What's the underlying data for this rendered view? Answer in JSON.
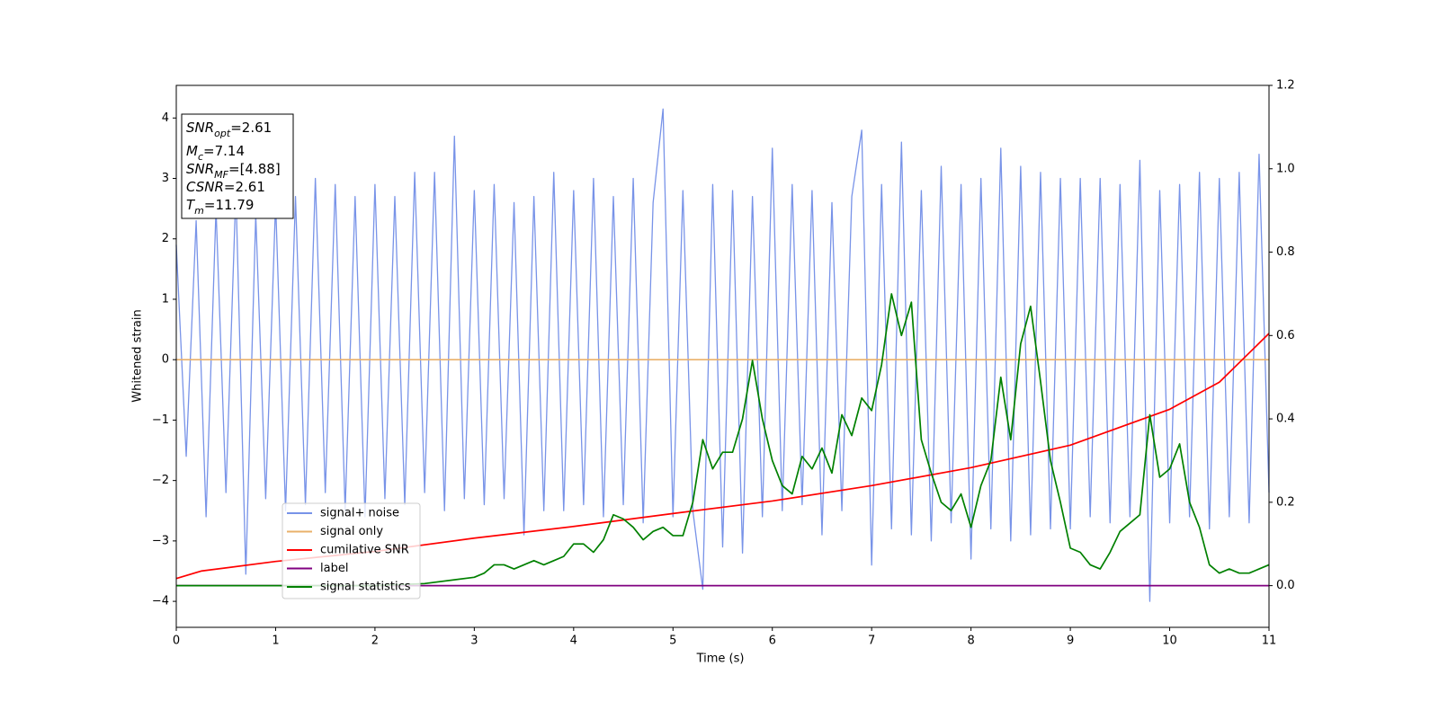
{
  "chart_data": {
    "type": "line",
    "xlabel": "Time (s)",
    "ylabel": "Whitened strain",
    "xlim": [
      0,
      11
    ],
    "ylim": [
      -4.43,
      4.54
    ],
    "y2lim": [
      -0.1,
      1.2
    ],
    "xticks": [
      0,
      1,
      2,
      3,
      4,
      5,
      6,
      7,
      8,
      9,
      10,
      11
    ],
    "yticks": [
      {
        "value": -4,
        "label": "−4"
      },
      {
        "value": -3,
        "label": "−3"
      },
      {
        "value": -2,
        "label": "−2"
      },
      {
        "value": -1,
        "label": "−1"
      },
      0,
      1,
      2,
      3,
      4
    ],
    "y2ticks": [
      {
        "value": 0,
        "label": "0.0"
      },
      {
        "value": 0.2,
        "label": "0.2"
      },
      {
        "value": 0.4,
        "label": "0.4"
      },
      {
        "value": 0.6,
        "label": "0.6"
      },
      {
        "value": 0.8,
        "label": "0.8"
      },
      {
        "value": 1,
        "label": "1.0"
      },
      {
        "value": 1.2,
        "label": "1.2"
      }
    ],
    "annotation": [
      {
        "base": "SNR",
        "sub": "opt",
        "text": "=2.61"
      },
      {
        "base": "M",
        "sub": "c",
        "text": "=7.14"
      },
      {
        "base": "SNR",
        "sub": "MF",
        "text": "=[4.88]"
      },
      {
        "base": "CSNR",
        "text": "=2.61"
      },
      {
        "base": "T",
        "sub": "m",
        "text": "=11.79"
      }
    ],
    "series": [
      {
        "name": "signal+ noise",
        "color": "#7893e8",
        "x": [
          0,
          0.1,
          0.2,
          0.3,
          0.4,
          0.5,
          0.6,
          0.7,
          0.8,
          0.9,
          1,
          1.1,
          1.2,
          1.3,
          1.4,
          1.5,
          1.6,
          1.7,
          1.8,
          1.9,
          2,
          2.1,
          2.2,
          2.3,
          2.4,
          2.5,
          2.6,
          2.7,
          2.8,
          2.9,
          3,
          3.1,
          3.2,
          3.3,
          3.4,
          3.5,
          3.6,
          3.7,
          3.8,
          3.9,
          4,
          4.1,
          4.2,
          4.3,
          4.4,
          4.5,
          4.6,
          4.7,
          4.8,
          4.9,
          5,
          5.1,
          5.2,
          5.3,
          5.4,
          5.5,
          5.6,
          5.7,
          5.8,
          5.9,
          6,
          6.1,
          6.2,
          6.3,
          6.4,
          6.5,
          6.6,
          6.7,
          6.8,
          6.9,
          7,
          7.1,
          7.2,
          7.3,
          7.4,
          7.5,
          7.6,
          7.7,
          7.8,
          7.9,
          8,
          8.1,
          8.2,
          8.3,
          8.4,
          8.5,
          8.6,
          8.7,
          8.8,
          8.9,
          9,
          9.1,
          9.2,
          9.3,
          9.4,
          9.5,
          9.6,
          9.7,
          9.8,
          9.9,
          10,
          10.1,
          10.2,
          10.3,
          10.4,
          10.5,
          10.6,
          10.7,
          10.8,
          10.9,
          11
        ],
        "values": [
          1.9,
          -1.6,
          2.3,
          -2.6,
          2.5,
          -2.2,
          2.8,
          -3.55,
          2.4,
          -2.3,
          2.6,
          -2.5,
          2.7,
          -2.4,
          3.0,
          -2.2,
          2.9,
          -2.5,
          2.7,
          -2.6,
          2.9,
          -2.3,
          2.7,
          -2.4,
          3.1,
          -2.2,
          3.1,
          -2.5,
          3.7,
          -2.3,
          2.8,
          -2.4,
          2.9,
          -2.3,
          2.6,
          -2.9,
          2.7,
          -2.5,
          3.1,
          -2.5,
          2.8,
          -2.4,
          3.0,
          -2.6,
          2.7,
          -2.4,
          3.0,
          -2.7,
          2.6,
          4.15,
          -2.6,
          2.8,
          -2.5,
          -3.8,
          2.9,
          -3.1,
          2.8,
          -3.2,
          2.7,
          -2.6,
          3.5,
          -2.5,
          2.9,
          -2.4,
          2.8,
          -2.9,
          2.6,
          -2.5,
          2.7,
          3.8,
          -3.4,
          2.9,
          -2.8,
          3.6,
          -2.9,
          2.8,
          -3.0,
          3.2,
          -2.7,
          2.9,
          -3.3,
          3.0,
          -2.8,
          3.5,
          -3.0,
          3.2,
          -2.9,
          3.1,
          -2.8,
          3.0,
          -2.8,
          3.0,
          -2.6,
          3.0,
          -2.7,
          2.9,
          -2.6,
          3.3,
          -4.0,
          2.8,
          -2.7,
          2.9,
          -2.6,
          3.1,
          -2.8,
          3.0,
          -2.6,
          3.1,
          -2.7,
          3.4,
          -2.2
        ]
      },
      {
        "name": "signal only",
        "color": "#e9b06a",
        "x": [
          0,
          11
        ],
        "values": [
          0,
          0
        ]
      },
      {
        "name": "cumilative SNR",
        "color": "#ff0000",
        "axis": "y2",
        "x": [
          0,
          0.25,
          1,
          2,
          3,
          4,
          5,
          6,
          7,
          8,
          9,
          10,
          10.5,
          11
        ],
        "values": [
          0.017,
          0.035,
          0.058,
          0.082,
          0.114,
          0.142,
          0.173,
          0.203,
          0.24,
          0.283,
          0.337,
          0.423,
          0.488,
          0.605
        ]
      },
      {
        "name": "label",
        "color": "#800080",
        "axis": "y2",
        "x": [
          0,
          11
        ],
        "values": [
          0,
          0
        ]
      },
      {
        "name": "signal statistics",
        "color": "#008000",
        "axis": "y2",
        "x": [
          0,
          0.5,
          1,
          1.5,
          2,
          2.5,
          3,
          3.1,
          3.2,
          3.3,
          3.4,
          3.5,
          3.6,
          3.7,
          3.8,
          3.9,
          4,
          4.1,
          4.2,
          4.3,
          4.4,
          4.5,
          4.6,
          4.7,
          4.8,
          4.9,
          5,
          5.1,
          5.2,
          5.3,
          5.4,
          5.5,
          5.6,
          5.7,
          5.8,
          5.9,
          6,
          6.1,
          6.2,
          6.3,
          6.4,
          6.5,
          6.6,
          6.7,
          6.8,
          6.9,
          7,
          7.1,
          7.2,
          7.3,
          7.4,
          7.5,
          7.6,
          7.7,
          7.8,
          7.9,
          8,
          8.1,
          8.2,
          8.3,
          8.4,
          8.5,
          8.6,
          8.7,
          8.8,
          8.9,
          9,
          9.1,
          9.2,
          9.3,
          9.4,
          9.5,
          9.6,
          9.7,
          9.8,
          9.9,
          10,
          10.1,
          10.2,
          10.3,
          10.4,
          10.5,
          10.6,
          10.7,
          10.8,
          10.9,
          11
        ],
        "values": [
          0,
          0,
          0,
          0,
          0,
          0.005,
          0.02,
          0.03,
          0.05,
          0.05,
          0.04,
          0.05,
          0.06,
          0.05,
          0.06,
          0.07,
          0.1,
          0.1,
          0.08,
          0.11,
          0.17,
          0.16,
          0.14,
          0.11,
          0.13,
          0.14,
          0.12,
          0.12,
          0.2,
          0.35,
          0.28,
          0.32,
          0.32,
          0.4,
          0.54,
          0.4,
          0.3,
          0.24,
          0.22,
          0.31,
          0.28,
          0.33,
          0.27,
          0.41,
          0.36,
          0.45,
          0.42,
          0.53,
          0.7,
          0.6,
          0.68,
          0.35,
          0.27,
          0.2,
          0.18,
          0.22,
          0.14,
          0.24,
          0.3,
          0.5,
          0.35,
          0.58,
          0.67,
          0.49,
          0.3,
          0.2,
          0.09,
          0.08,
          0.05,
          0.04,
          0.08,
          0.13,
          0.15,
          0.17,
          0.41,
          0.26,
          0.28,
          0.34,
          0.2,
          0.14,
          0.05,
          0.03,
          0.04,
          0.03,
          0.03,
          0.04,
          0.05
        ]
      }
    ]
  }
}
